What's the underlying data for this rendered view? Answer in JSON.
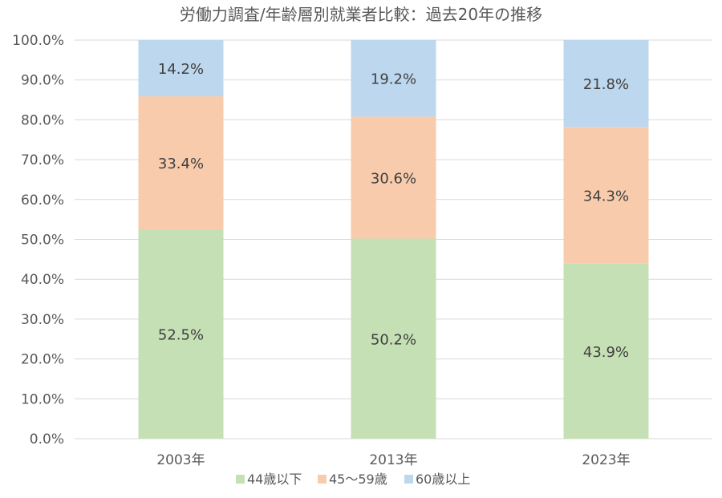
{
  "chart_data": {
    "type": "bar",
    "stacked": true,
    "title": "労働力調査/年齢層別就業者比較：過去20年の推移",
    "categories": [
      "2003年",
      "2013年",
      "2023年"
    ],
    "series": [
      {
        "name": "44歳以下",
        "values": [
          52.5,
          50.2,
          43.9
        ],
        "labels": [
          "52.5%",
          "50.2%",
          "43.9%"
        ],
        "color": "#c5e0b4"
      },
      {
        "name": "45～59歳",
        "values": [
          33.4,
          30.6,
          34.3
        ],
        "labels": [
          "33.4%",
          "30.6%",
          "34.3%"
        ],
        "color": "#f8cbad"
      },
      {
        "name": "60歳以上",
        "values": [
          14.2,
          19.2,
          21.8
        ],
        "labels": [
          "14.2%",
          "19.2%",
          "21.8%"
        ],
        "color": "#bdd7ee"
      }
    ],
    "yticks": [
      "0.0%",
      "10.0%",
      "20.0%",
      "30.0%",
      "40.0%",
      "50.0%",
      "60.0%",
      "70.0%",
      "80.0%",
      "90.0%",
      "100.0%"
    ],
    "ylim": [
      0,
      100
    ],
    "grid": true,
    "legend": "bottom"
  }
}
